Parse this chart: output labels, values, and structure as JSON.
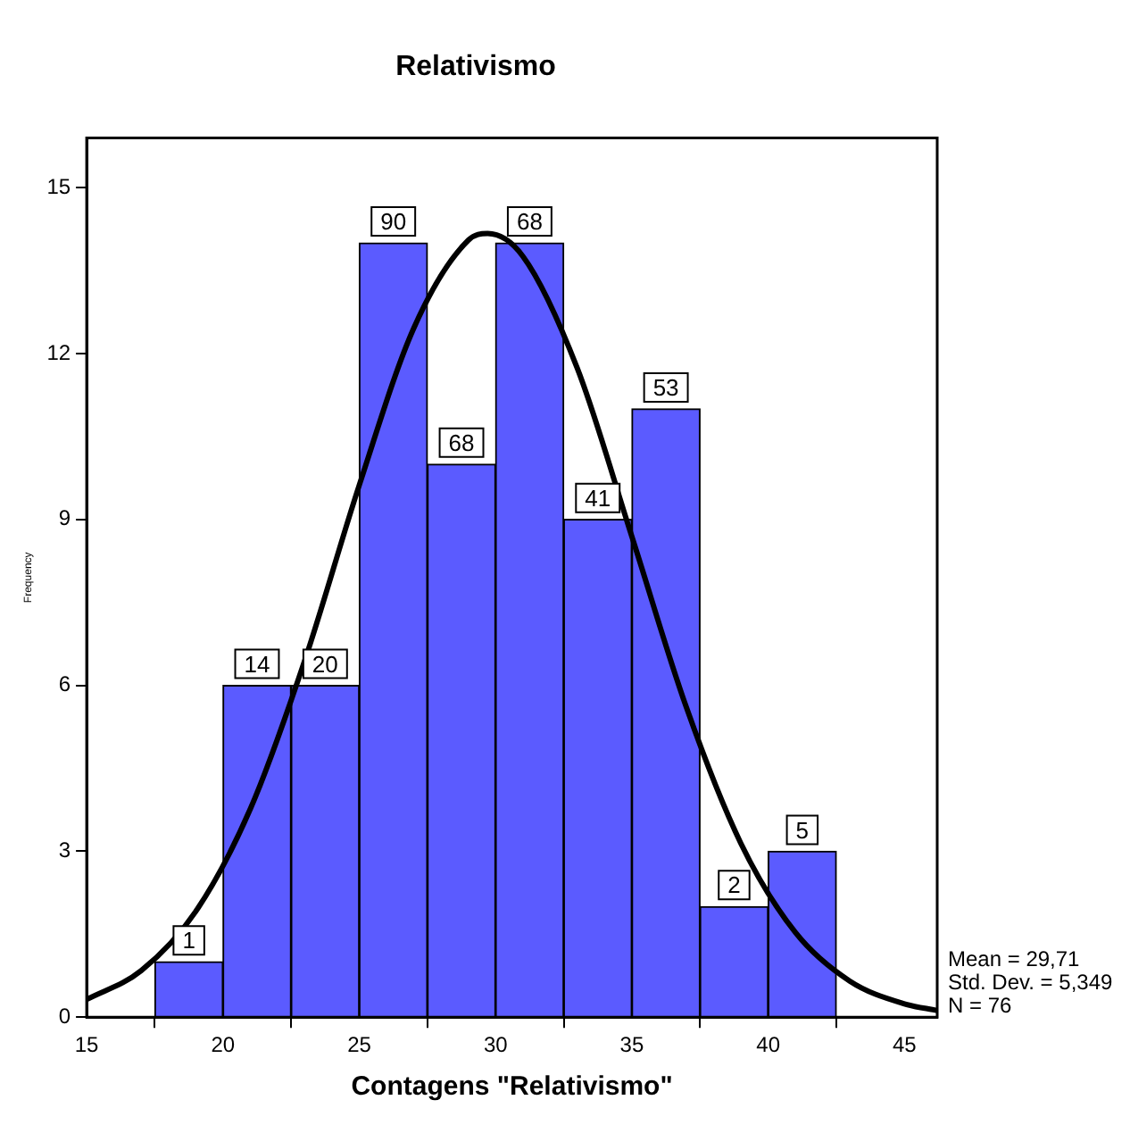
{
  "chart_data": {
    "type": "histogram",
    "title": "Relativismo",
    "xlabel": "Contagens \"Relativismo\"",
    "ylabel": "Frequency",
    "bins": [
      17.5,
      20,
      22.5,
      25,
      27.5,
      30,
      32.5,
      35,
      37.5,
      40,
      42.5
    ],
    "values": [
      1,
      6,
      6,
      14,
      10,
      14,
      9,
      11,
      2,
      3
    ],
    "color": "#5b5bff",
    "series": [
      {
        "type": "line",
        "color": "#000000",
        "x": [
          15,
          17,
          19,
          21,
          23,
          25,
          27,
          29,
          29.71,
          31,
          33,
          35,
          37,
          39,
          41,
          43,
          45,
          46.2
        ],
        "values": [
          0.32,
          0.84,
          1.91,
          3.76,
          6.45,
          9.62,
          12.46,
          14.05,
          14.17,
          13.76,
          11.73,
          8.69,
          5.6,
          3.14,
          1.53,
          0.65,
          0.24,
          0.12
        ]
      }
    ],
    "xlim": [
      15,
      46.2
    ],
    "xticks": [
      15,
      20,
      25,
      30,
      35,
      40,
      45
    ],
    "ylim": [
      0,
      15.9
    ],
    "yticks": [
      0,
      3,
      6,
      9,
      12,
      15
    ],
    "legend": false,
    "annotations": [
      {
        "text": "1",
        "x": 18.75,
        "y": 1
      },
      {
        "text": "14",
        "x": 21.25,
        "y": 6
      },
      {
        "text": "20",
        "x": 23.75,
        "y": 6
      },
      {
        "text": "90",
        "x": 26.25,
        "y": 14
      },
      {
        "text": "68",
        "x": 28.75,
        "y": 10
      },
      {
        "text": "68",
        "x": 31.25,
        "y": 14
      },
      {
        "text": "41",
        "x": 33.75,
        "y": 9
      },
      {
        "text": "53",
        "x": 36.25,
        "y": 11
      },
      {
        "text": "2",
        "x": 38.75,
        "y": 2
      },
      {
        "text": "5",
        "x": 41.25,
        "y": 3
      },
      "Mean = 29,71",
      "Std. Dev. = 5,349",
      "N = 76"
    ]
  }
}
